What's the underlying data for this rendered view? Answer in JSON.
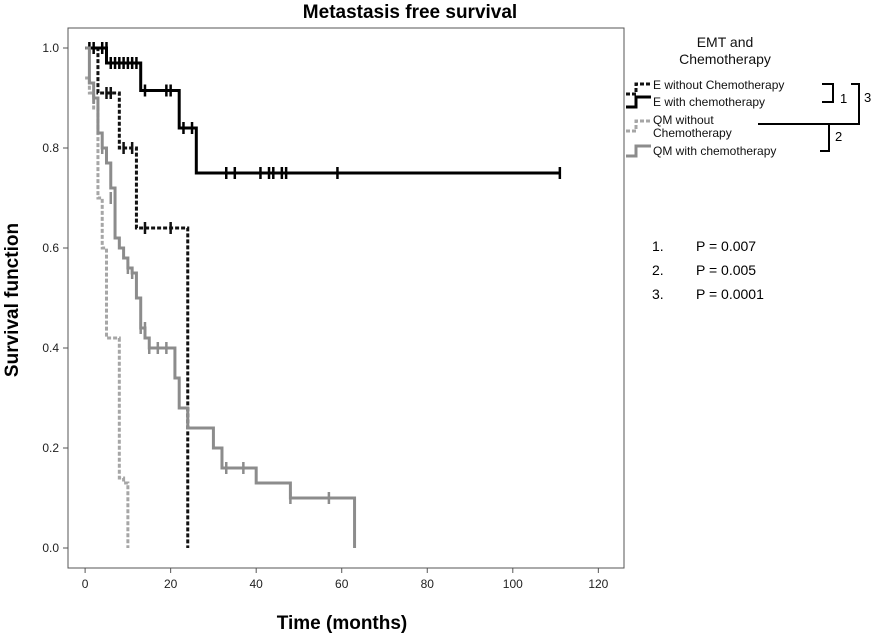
{
  "chart_data": {
    "type": "line",
    "subtype": "kaplan-meier step",
    "title": "Metastasis free survival",
    "xlabel": "Time (months)",
    "ylabel": "Survival function",
    "xlim": [
      -4,
      126
    ],
    "ylim": [
      -0.04,
      1.04
    ],
    "xticks": [
      0,
      20,
      40,
      60,
      80,
      100,
      120
    ],
    "yticks": [
      0.0,
      0.2,
      0.4,
      0.6,
      0.8,
      1.0
    ],
    "ytick_labels": [
      "0.0",
      "0.2",
      "0.4",
      "0.6",
      "0.8",
      "1.0"
    ],
    "legend": {
      "title_lines": [
        "EMT and",
        "Chemotherapy"
      ],
      "position": "right"
    },
    "series": [
      {
        "name": "E without Chemotherapy",
        "legend_lines": [
          "E without Chemotherapy"
        ],
        "color": "#111111",
        "dashed": true,
        "steps": [
          [
            0,
            1.0
          ],
          [
            3,
            0.91
          ],
          [
            8,
            0.8
          ],
          [
            12,
            0.64
          ],
          [
            24,
            0.0
          ]
        ],
        "censored": [
          [
            5,
            0.91
          ],
          [
            6,
            0.91
          ],
          [
            9,
            0.8
          ],
          [
            11,
            0.8
          ],
          [
            14,
            0.64
          ],
          [
            20,
            0.64
          ]
        ]
      },
      {
        "name": "E with chemotherapy",
        "legend_lines": [
          "E with chemotherapy"
        ],
        "color": "#000000",
        "dashed": false,
        "steps": [
          [
            0,
            1.0
          ],
          [
            5,
            0.97
          ],
          [
            13,
            0.915
          ],
          [
            22,
            0.84
          ],
          [
            26,
            0.75
          ],
          [
            111,
            0.75
          ]
        ],
        "censored": [
          [
            1,
            1.0
          ],
          [
            2,
            1.0
          ],
          [
            4,
            1.0
          ],
          [
            5,
            1.0
          ],
          [
            6,
            0.97
          ],
          [
            7,
            0.97
          ],
          [
            8,
            0.97
          ],
          [
            9,
            0.97
          ],
          [
            10,
            0.97
          ],
          [
            11,
            0.97
          ],
          [
            12,
            0.97
          ],
          [
            14,
            0.915
          ],
          [
            19,
            0.915
          ],
          [
            20,
            0.915
          ],
          [
            23,
            0.84
          ],
          [
            25,
            0.84
          ],
          [
            33,
            0.75
          ],
          [
            35,
            0.75
          ],
          [
            41,
            0.75
          ],
          [
            43,
            0.75
          ],
          [
            44,
            0.75
          ],
          [
            46,
            0.75
          ],
          [
            47,
            0.75
          ],
          [
            59,
            0.75
          ],
          [
            111,
            0.75
          ]
        ]
      },
      {
        "name": "QM without Chemotherapy",
        "legend_lines": [
          "QM without",
          "Chemotherapy"
        ],
        "color": "#a6a6a6",
        "dashed": true,
        "steps": [
          [
            0,
            0.94
          ],
          [
            1,
            0.91
          ],
          [
            2,
            0.88
          ],
          [
            3,
            0.7
          ],
          [
            4,
            0.6
          ],
          [
            5,
            0.42
          ],
          [
            8,
            0.14
          ],
          [
            9,
            0.13
          ],
          [
            10,
            0.0
          ]
        ],
        "censored": [
          [
            2,
            0.91
          ]
        ]
      },
      {
        "name": "QM with chemotherapy",
        "legend_lines": [
          "QM with chemotherapy"
        ],
        "color": "#8c8c8c",
        "dashed": false,
        "steps": [
          [
            0,
            1.0
          ],
          [
            1,
            0.93
          ],
          [
            2,
            0.9
          ],
          [
            3,
            0.83
          ],
          [
            4,
            0.8
          ],
          [
            5,
            0.77
          ],
          [
            6,
            0.72
          ],
          [
            7,
            0.62
          ],
          [
            8,
            0.6
          ],
          [
            9,
            0.58
          ],
          [
            10,
            0.56
          ],
          [
            11,
            0.55
          ],
          [
            12,
            0.5
          ],
          [
            13,
            0.44
          ],
          [
            14,
            0.42
          ],
          [
            15,
            0.4
          ],
          [
            21,
            0.34
          ],
          [
            22,
            0.28
          ],
          [
            24,
            0.24
          ],
          [
            30,
            0.2
          ],
          [
            32,
            0.16
          ],
          [
            40,
            0.13
          ],
          [
            48,
            0.1
          ],
          [
            62,
            0.1
          ],
          [
            63,
            0.0
          ]
        ],
        "censored": [
          [
            2,
            0.9
          ],
          [
            4,
            0.8
          ],
          [
            6,
            0.7
          ],
          [
            8,
            0.61
          ],
          [
            10,
            0.56
          ],
          [
            11,
            0.55
          ],
          [
            13,
            0.44
          ],
          [
            14,
            0.44
          ],
          [
            15,
            0.4
          ],
          [
            17,
            0.4
          ],
          [
            19,
            0.4
          ],
          [
            33,
            0.16
          ],
          [
            37,
            0.16
          ],
          [
            48,
            0.1
          ],
          [
            57,
            0.1
          ]
        ]
      }
    ],
    "comparisons": [
      {
        "label": "1",
        "between": [
          "E without Chemotherapy",
          "E with chemotherapy"
        ]
      },
      {
        "label": "2",
        "between": [
          "QM without Chemotherapy",
          "QM with chemotherapy"
        ]
      },
      {
        "label": "3",
        "between": [
          "E",
          "QM"
        ]
      }
    ],
    "p_values": [
      {
        "num": "1.",
        "text": "P = 0.007"
      },
      {
        "num": "2.",
        "text": "P = 0.005"
      },
      {
        "num": "3.",
        "text": "P = 0.0001"
      }
    ]
  }
}
